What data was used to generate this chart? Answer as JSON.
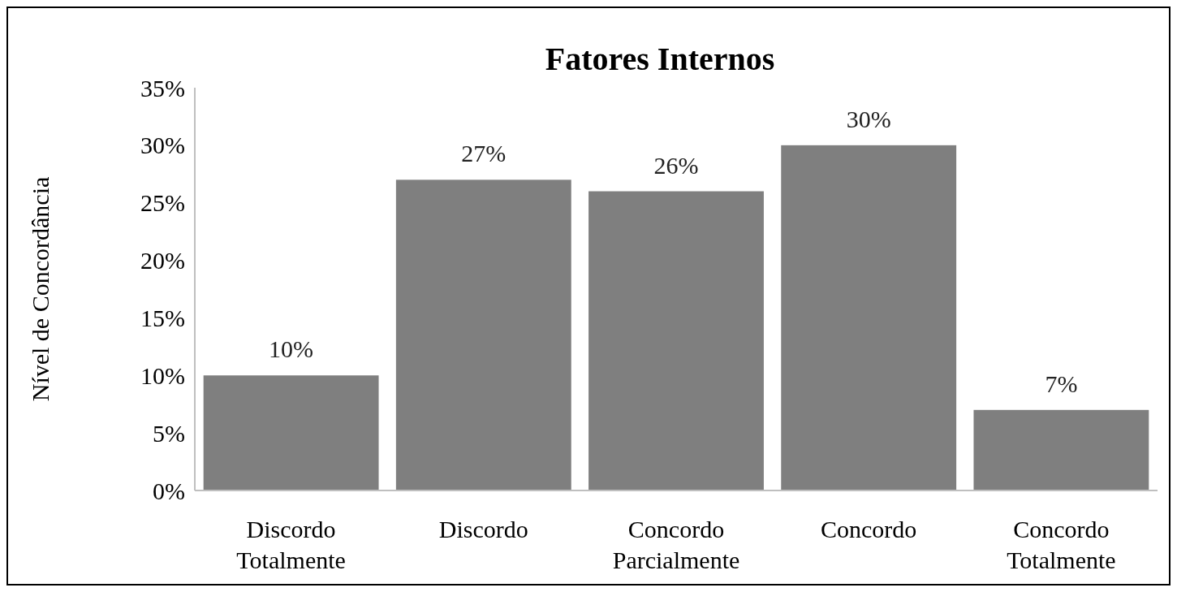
{
  "chart_data": {
    "type": "bar",
    "title": "Fatores Internos",
    "ylabel": "Nível de Concordância",
    "categories": [
      "Discordo Totalmente",
      "Discordo",
      "Concordo Parcialmente",
      "Concordo",
      "Concordo Totalmente"
    ],
    "values": [
      10,
      27,
      26,
      30,
      7
    ],
    "value_labels": [
      "10%",
      "27%",
      "26%",
      "30%",
      "7%"
    ],
    "color": "#7f7f7f",
    "ylim": [
      0,
      35
    ],
    "yticks": [
      {
        "value": 0,
        "label": "0%"
      },
      {
        "value": 5,
        "label": "5%"
      },
      {
        "value": 10,
        "label": "10%"
      },
      {
        "value": 15,
        "label": "15%"
      },
      {
        "value": 20,
        "label": "20%"
      },
      {
        "value": 25,
        "label": "25%"
      },
      {
        "value": 30,
        "label": "30%"
      },
      {
        "value": 35,
        "label": "35%"
      }
    ],
    "grid": false
  }
}
